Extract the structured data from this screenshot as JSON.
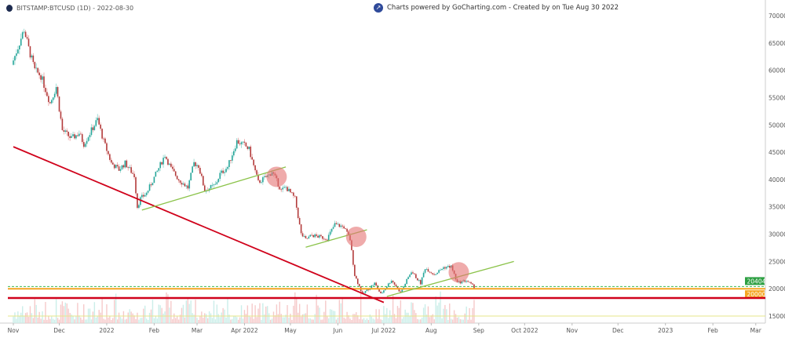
{
  "header": {
    "symbol_label": "BITSTAMP:BTCUSD (1D) - 2022-08-30",
    "powered_by": "Charts powered by GoCharting.com - Created by  on Tue Aug 30 2022"
  },
  "colors": {
    "up": "#26a69a",
    "down": "#b23a3a",
    "trend_red": "#d0021b",
    "trend_green": "#8bc34a",
    "support_orange": "#f5a623",
    "last_price": "#3fb950",
    "circle": "#e57373"
  },
  "chart_data": {
    "type": "candlestick",
    "title": "",
    "ylim": [
      12000,
      72000
    ],
    "y_ticks": [
      15000,
      20000,
      25000,
      30000,
      35000,
      40000,
      45000,
      50000,
      55000,
      60000,
      65000,
      70000
    ],
    "x_ticks": [
      {
        "date": "2021-11-01",
        "label": "Nov"
      },
      {
        "date": "2021-12-01",
        "label": "Dec"
      },
      {
        "date": "2022-01-01",
        "label": "2022"
      },
      {
        "date": "2022-02-01",
        "label": "Feb"
      },
      {
        "date": "2022-03-01",
        "label": "Mar"
      },
      {
        "date": "2022-04-01",
        "label": "Apr 2022"
      },
      {
        "date": "2022-05-01",
        "label": "May"
      },
      {
        "date": "2022-06-01",
        "label": "Jun"
      },
      {
        "date": "2022-07-01",
        "label": "Jul 2022"
      },
      {
        "date": "2022-08-01",
        "label": "Aug"
      },
      {
        "date": "2022-09-01",
        "label": "Sep"
      },
      {
        "date": "2022-10-01",
        "label": "Oct 2022"
      },
      {
        "date": "2022-11-01",
        "label": "Nov"
      },
      {
        "date": "2022-12-01",
        "label": "Dec"
      },
      {
        "date": "2023-01-01",
        "label": "2023"
      },
      {
        "date": "2023-02-01",
        "label": "Feb"
      },
      {
        "date": "2023-03-01",
        "label": "Mar"
      }
    ],
    "close_path": [
      [
        "2021-11-01",
        61000
      ],
      [
        "2021-11-09",
        67500
      ],
      [
        "2021-11-12",
        64000
      ],
      [
        "2021-11-16",
        60000
      ],
      [
        "2021-11-20",
        59000
      ],
      [
        "2021-11-26",
        54000
      ],
      [
        "2021-11-30",
        57000
      ],
      [
        "2021-12-04",
        49000
      ],
      [
        "2021-12-10",
        47500
      ],
      [
        "2021-12-15",
        48500
      ],
      [
        "2021-12-18",
        46500
      ],
      [
        "2021-12-27",
        51000
      ],
      [
        "2021-12-31",
        47000
      ],
      [
        "2022-01-05",
        43000
      ],
      [
        "2022-01-10",
        41800
      ],
      [
        "2022-01-14",
        43000
      ],
      [
        "2022-01-20",
        40700
      ],
      [
        "2022-01-22",
        35000
      ],
      [
        "2022-01-24",
        36500
      ],
      [
        "2022-01-28",
        37500
      ],
      [
        "2022-02-04",
        41500
      ],
      [
        "2022-02-09",
        44500
      ],
      [
        "2022-02-13",
        42000
      ],
      [
        "2022-02-18",
        40000
      ],
      [
        "2022-02-24",
        38500
      ],
      [
        "2022-02-28",
        43000
      ],
      [
        "2022-03-03",
        42500
      ],
      [
        "2022-03-07",
        38000
      ],
      [
        "2022-03-14",
        39000
      ],
      [
        "2022-03-17",
        41000
      ],
      [
        "2022-03-22",
        42300
      ],
      [
        "2022-03-28",
        47000
      ],
      [
        "2022-04-02",
        46300
      ],
      [
        "2022-04-05",
        45500
      ],
      [
        "2022-04-11",
        39500
      ],
      [
        "2022-04-18",
        40800
      ],
      [
        "2022-04-20",
        41500
      ],
      [
        "2022-04-26",
        38000
      ],
      [
        "2022-04-29",
        38600
      ],
      [
        "2022-05-05",
        36500
      ],
      [
        "2022-05-09",
        30000
      ],
      [
        "2022-05-12",
        29000
      ],
      [
        "2022-05-16",
        29800
      ],
      [
        "2022-05-26",
        29200
      ],
      [
        "2022-05-31",
        31800
      ],
      [
        "2022-06-06",
        31300
      ],
      [
        "2022-06-10",
        29000
      ],
      [
        "2022-06-13",
        22500
      ],
      [
        "2022-06-18",
        19000
      ],
      [
        "2022-06-22",
        20000
      ],
      [
        "2022-06-26",
        21000
      ],
      [
        "2022-06-30",
        19000
      ],
      [
        "2022-07-07",
        21600
      ],
      [
        "2022-07-13",
        19300
      ],
      [
        "2022-07-20",
        23200
      ],
      [
        "2022-07-26",
        21000
      ],
      [
        "2022-07-29",
        23800
      ],
      [
        "2022-08-04",
        22600
      ],
      [
        "2022-08-10",
        23900
      ],
      [
        "2022-08-15",
        24100
      ],
      [
        "2022-08-19",
        21100
      ],
      [
        "2022-08-25",
        21500
      ],
      [
        "2022-08-30",
        20300
      ]
    ],
    "trend_lines": [
      {
        "color": "red",
        "from": [
          "2021-11-01",
          46000
        ],
        "to": [
          "2022-07-01",
          17500
        ]
      },
      {
        "color": "green",
        "from": [
          "2022-01-24",
          34400
        ],
        "to": [
          "2022-04-28",
          42300
        ]
      },
      {
        "color": "green",
        "from": [
          "2022-05-11",
          27600
        ],
        "to": [
          "2022-06-20",
          30800
        ]
      },
      {
        "color": "green",
        "from": [
          "2022-07-03",
          18600
        ],
        "to": [
          "2022-09-24",
          25000
        ]
      }
    ],
    "horizontal_lines": [
      {
        "price": 20000,
        "color": "orange",
        "label": "20000"
      },
      {
        "price": 18300,
        "color": "red"
      },
      {
        "price": 20404,
        "color": "last",
        "dashed": true,
        "label": "20404"
      },
      {
        "price": 15000,
        "color": "yellow"
      }
    ],
    "highlight_circles": [
      [
        "2022-04-22",
        40500
      ],
      [
        "2022-06-13",
        29500
      ],
      [
        "2022-08-19",
        23000
      ]
    ]
  }
}
